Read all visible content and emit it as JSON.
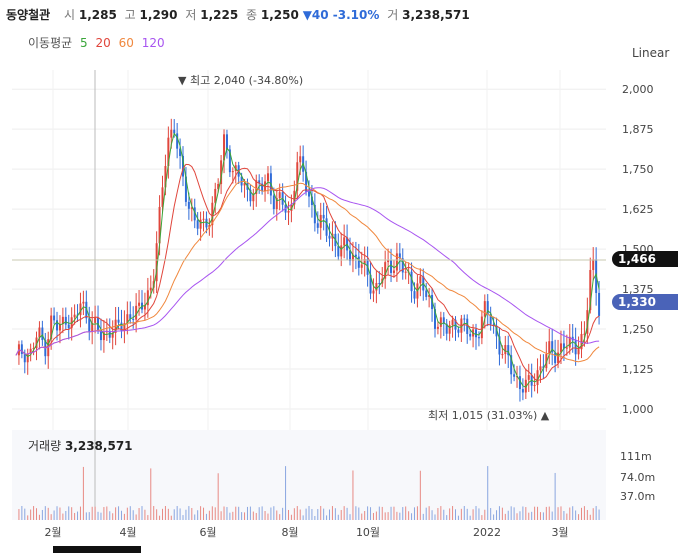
{
  "header": {
    "name": "동양철관",
    "open_label": "시",
    "open": "1,285",
    "high_label": "고",
    "high": "1,290",
    "low_label": "저",
    "low": "1,225",
    "close_label": "종",
    "close": "1,250",
    "change": "▼40 -3.10%",
    "volume_label": "거",
    "volume": "3,238,571"
  },
  "ma_legend": {
    "label": "이동평균",
    "items": [
      {
        "text": "5",
        "color": "#3aa63a"
      },
      {
        "text": "20",
        "color": "#e0463c"
      },
      {
        "text": "60",
        "color": "#f0883e"
      },
      {
        "text": "120",
        "color": "#a855f0"
      }
    ]
  },
  "scale_mode": "Linear",
  "colors": {
    "up": "#e0463c",
    "down": "#2f6bd8",
    "current_badge": "#111111",
    "last_badge": "#4a63b8"
  },
  "chart_data": {
    "type": "candlestick",
    "yticks": [
      "2,000",
      "1,875",
      "1,750",
      "1,625",
      "1,500",
      "1,375",
      "1,250",
      "1,125",
      "1,000"
    ],
    "ylim": [
      950,
      2060
    ],
    "xticks": [
      "2월",
      "4월",
      "6월",
      "8월",
      "10월",
      "2022",
      "3월"
    ],
    "high_annotation": "최고 2,040 (-34.80%)",
    "low_annotation": "최저 1,015 (31.03%)",
    "current_price": "1,466",
    "last_close": "1,330",
    "price_path": [
      1150,
      1190,
      1170,
      1230,
      1200,
      1280,
      1240,
      1300,
      1260,
      1330,
      1290,
      1250,
      1220,
      1260,
      1240,
      1270,
      1310,
      1290,
      1350,
      1400,
      1600,
      1850,
      1880,
      1720,
      1650,
      1580,
      1560,
      1620,
      1700,
      1840,
      1760,
      1720,
      1670,
      1700,
      1680,
      1720,
      1650,
      1640,
      1600,
      1780,
      1720,
      1640,
      1580,
      1560,
      1540,
      1490,
      1500,
      1480,
      1450,
      1400,
      1380,
      1420,
      1450,
      1480,
      1420,
      1380,
      1400,
      1350,
      1300,
      1260,
      1240,
      1280,
      1260,
      1230,
      1240,
      1300,
      1280,
      1210,
      1160,
      1120,
      1080,
      1060,
      1100,
      1140,
      1170,
      1180,
      1200,
      1190,
      1210,
      1230,
      1466,
      1330
    ],
    "volume_panel": {
      "title": "거래량",
      "value": "3,238,571",
      "ticks": [
        "111m",
        "74.0m",
        "37.0m"
      ]
    }
  }
}
